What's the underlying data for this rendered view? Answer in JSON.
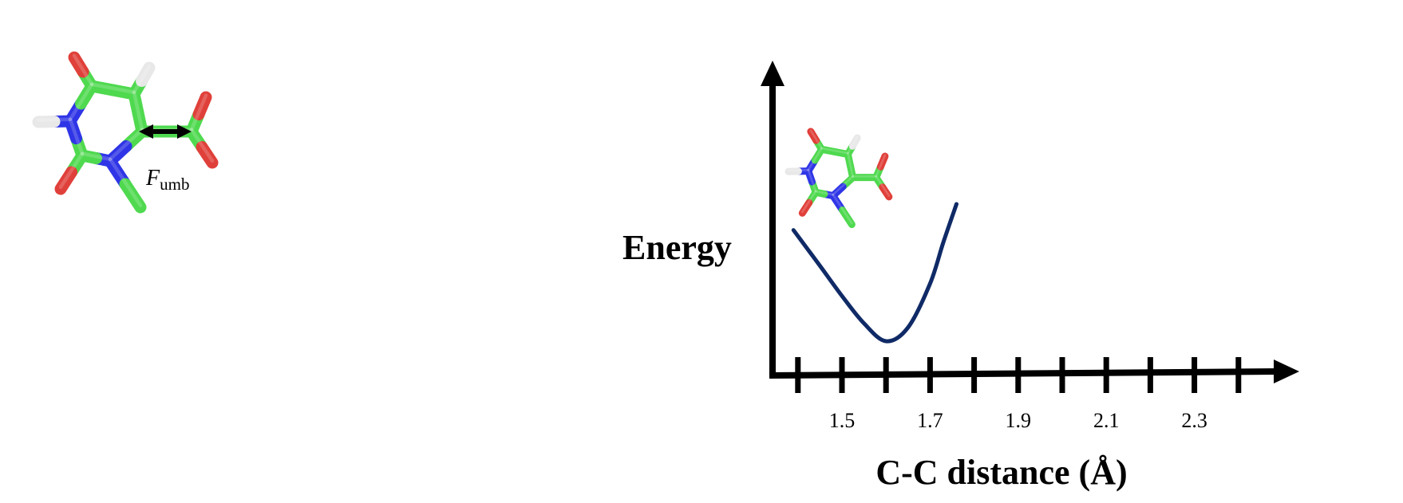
{
  "force_label": {
    "main": "F",
    "sub": "umb"
  },
  "chart_data": {
    "type": "line",
    "title": "",
    "xlabel": "C-C distance (Å)",
    "ylabel": "Energy",
    "x_tick_labels": [
      "1.5",
      "1.7",
      "1.9",
      "2.1",
      "2.3"
    ],
    "xlim": [
      1.4,
      2.4
    ],
    "y_ticks_shown": false,
    "grid": false,
    "series": [
      {
        "color": "#0f2a66",
        "x": [
          1.39,
          1.45,
          1.5,
          1.55,
          1.6,
          1.65,
          1.7,
          1.73,
          1.76
        ],
        "y": [
          0.81,
          0.55,
          0.33,
          0.13,
          0.0,
          0.1,
          0.42,
          0.72,
          1.0
        ]
      }
    ]
  },
  "colors": {
    "carbon": "#4fd94f",
    "nitrogen": "#2f35e6",
    "oxygen": "#e0403a",
    "hydrogen": "#e8e8e8",
    "axis": "#000000",
    "curve": "#0f2a66"
  },
  "icons": {
    "molecule": "pyrimidine-carboxylate-stick-model",
    "double_arrow": "double-headed-arrow"
  }
}
